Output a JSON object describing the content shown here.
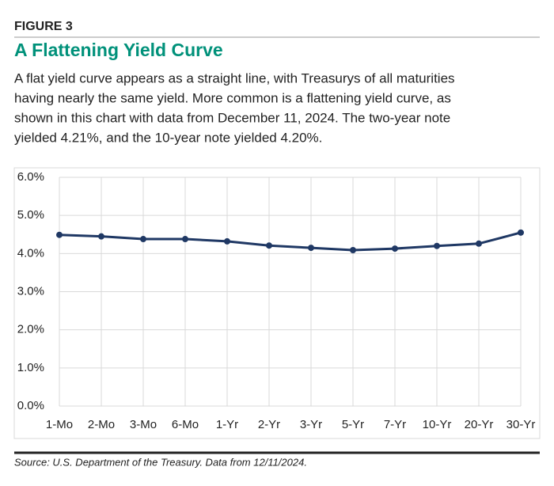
{
  "chart_data": {
    "type": "line",
    "figure_label": "FIGURE 3",
    "title": "A Flattening Yield Curve",
    "subtitle_lines": [
      "A flat yield curve appears as a straight line, with Treasurys of all maturities",
      "having nearly the same yield. More common is a flattening yield curve, as",
      "shown in this chart with data from December 11, 2024. The two-year note",
      "yielded 4.21%, and the 10-year note yielded 4.20%."
    ],
    "categories": [
      "1-Mo",
      "2-Mo",
      "3-Mo",
      "6-Mo",
      "1-Yr",
      "2-Yr",
      "3-Yr",
      "5-Yr",
      "7-Yr",
      "10-Yr",
      "20-Yr",
      "30-Yr"
    ],
    "series": [
      {
        "name": "Yield",
        "color": "#1f3864",
        "values": [
          4.49,
          4.45,
          4.38,
          4.38,
          4.32,
          4.21,
          4.15,
          4.09,
          4.13,
          4.2,
          4.26,
          4.55
        ]
      }
    ],
    "ylim": [
      0,
      6
    ],
    "yticks": [
      {
        "value": 0,
        "label": "0.0%"
      },
      {
        "value": 1,
        "label": "1.0%"
      },
      {
        "value": 2,
        "label": "2.0%"
      },
      {
        "value": 3,
        "label": "3.0%"
      },
      {
        "value": 4,
        "label": "4.0%"
      },
      {
        "value": 5,
        "label": "5.0%"
      },
      {
        "value": 6,
        "label": "6.0%"
      }
    ],
    "grid": true,
    "source": "Source: U.S. Department of the Treasury. Data from 12/11/2024."
  }
}
